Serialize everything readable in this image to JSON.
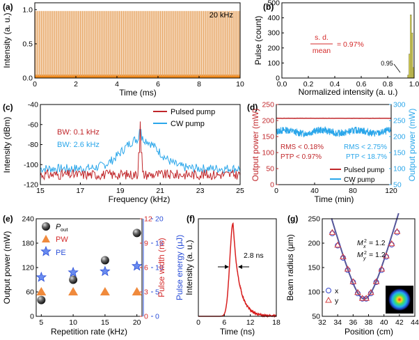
{
  "chart_data": [
    {
      "panel_label": "(a)",
      "type": "line",
      "annotation": "20 kHz",
      "xlabel": "Time (ms)",
      "ylabel": "Intensity (a. u.)",
      "xlim": [
        0,
        10
      ],
      "ylim": [
        0,
        1.1
      ],
      "xticks": [
        "0",
        "2",
        "4",
        "6",
        "8",
        "10"
      ],
      "yticks": [
        "0.0",
        "0.5",
        "1.0"
      ],
      "series": [
        {
          "description": "pulse train, period 0.05 ms",
          "pulse_period_ms": 0.05,
          "pulse_count": 200,
          "peak": 0.98,
          "baseline": 0.03,
          "color": "#e8a868"
        }
      ]
    },
    {
      "panel_label": "(b)",
      "type": "bar",
      "annotation_num": "s. d.",
      "annotation_den": "mean",
      "annotation_value": "= 0.97%",
      "annotation_marker": "0.95",
      "xlabel": "Normalized intensity (a. u.)",
      "ylabel": "Pulse (count)",
      "xlim": [
        0,
        1.0
      ],
      "ylim": [
        0,
        500
      ],
      "xticks": [
        "0.0",
        "0.2",
        "0.4",
        "0.6",
        "0.8",
        "1.0"
      ],
      "yticks": [
        "0",
        "100",
        "200",
        "300",
        "400",
        "500"
      ],
      "bar_color": "#d9d24a",
      "bars": [
        {
          "x": 0.955,
          "count": 20
        },
        {
          "x": 0.965,
          "count": 160
        },
        {
          "x": 0.975,
          "count": 420
        },
        {
          "x": 0.985,
          "count": 300
        },
        {
          "x": 0.995,
          "count": 70
        }
      ]
    },
    {
      "panel_label": "(c)",
      "type": "line",
      "xlabel": "Frequency (kHz)",
      "ylabel": "Intensity (dBm)",
      "xlim": [
        15,
        25
      ],
      "ylim": [
        -120,
        -40
      ],
      "xticks": [
        "15",
        "17",
        "19",
        "21",
        "23",
        "25"
      ],
      "yticks": [
        "-120",
        "-100",
        "-80",
        "-60",
        "-40"
      ],
      "annotations": [
        {
          "text": "BW:  0.1 kHz",
          "color": "#c0262a"
        },
        {
          "text": "BW:  2.6 kHz",
          "color": "#2aa6ea"
        }
      ],
      "series": [
        {
          "name": "Pulsed pump",
          "color": "#c0262a",
          "center": 20,
          "peak": -57,
          "floor": -110
        },
        {
          "name": "CW pump",
          "color": "#2aa6ea",
          "center": 20,
          "peak": -65,
          "floor": -103
        }
      ]
    },
    {
      "panel_label": "(d)",
      "type": "line",
      "xlabel": "Time (min)",
      "ylabel_left": "Output power (mW)",
      "ylabel_right": "Output power (mW)",
      "xlim": [
        0,
        120
      ],
      "ylim_left": [
        0,
        250
      ],
      "ylim_right": [
        50,
        300
      ],
      "xticks": [
        "0",
        "40",
        "80",
        "120"
      ],
      "yticks_left": [
        "0",
        "50",
        "100",
        "150",
        "200",
        "250"
      ],
      "yticks_right": [
        "50",
        "100",
        "150",
        "200",
        "250",
        "300"
      ],
      "annotations_left": [
        "RMS < 0.18%",
        "PTP < 0.97%"
      ],
      "annotations_right": [
        "RMS < 2.75%",
        "PTP < 18.7%"
      ],
      "series": [
        {
          "name": "Pulsed pump",
          "color": "#c0262a",
          "axis": "left",
          "mean": 207
        },
        {
          "name": "CW pump",
          "color": "#2aa6ea",
          "axis": "right",
          "mean": 215
        }
      ]
    },
    {
      "panel_label": "(e)",
      "type": "scatter",
      "xlabel": "Repetition rate (kHz)",
      "ylabel_left": "Output power (mW)",
      "ylabel_right1": "Pulse width (ns)",
      "ylabel_right2": "Pulse energy (μJ)",
      "xlim": [
        5,
        20
      ],
      "xticks": [
        "5",
        "10",
        "15",
        "20"
      ],
      "yticks_left": [
        "0",
        "60",
        "120",
        "180",
        "240"
      ],
      "yticks_right1": [
        "0",
        "3",
        "6",
        "9",
        "12"
      ],
      "yticks_right2": [
        "0",
        "5",
        "10",
        "15",
        "20"
      ],
      "legend": [
        {
          "label": "P",
          "sub": "out",
          "marker": "sphere",
          "color": "#333333"
        },
        {
          "label": "PW",
          "marker": "triangle",
          "color": "#f08a3c"
        },
        {
          "label": "PE",
          "marker": "star",
          "color": "#2b4fd8"
        }
      ],
      "x": [
        5,
        10,
        15,
        20
      ],
      "series": [
        {
          "name": "Pout",
          "values_mW": [
            40,
            90,
            138,
            205
          ]
        },
        {
          "name": "PW",
          "values_ns": [
            3.0,
            3.0,
            3.0,
            3.0
          ]
        },
        {
          "name": "PE",
          "values_uJ": [
            8.0,
            9.0,
            9.2,
            10.3
          ]
        }
      ]
    },
    {
      "panel_label": "(f)",
      "type": "line",
      "xlabel": "Time (ns)",
      "ylabel": "Intensity (a. u.)",
      "xlim": [
        0,
        18
      ],
      "ylim": [
        0,
        1
      ],
      "xticks": [
        "0",
        "6",
        "12",
        "18"
      ],
      "annotation": "2.8 ns",
      "series": [
        {
          "color": "#d81e1e",
          "peak_time": 8.0,
          "fwhm_ns": 2.8
        }
      ]
    },
    {
      "panel_label": "(g)",
      "type": "scatter",
      "xlabel": "Position (cm)",
      "ylabel": "Beam radius (μm)",
      "xlim": [
        32,
        44
      ],
      "ylim": [
        50,
        250
      ],
      "xticks": [
        "32",
        "34",
        "36",
        "38",
        "40",
        "42",
        "44"
      ],
      "yticks": [
        "50",
        "100",
        "150",
        "200",
        "250"
      ],
      "annotations": [
        "M",
        "M"
      ],
      "annotation_sub": [
        "x",
        "y"
      ],
      "annotation_value": "= 1.2",
      "legend": [
        {
          "label": "x",
          "marker": "circle",
          "color": "#3344cc"
        },
        {
          "label": "y",
          "marker": "triangle",
          "color": "#d64040"
        }
      ],
      "x": [
        33.3,
        34.0,
        34.7,
        35.3,
        36.0,
        36.6,
        37.2,
        37.7,
        38.3,
        39.0,
        39.7,
        40.3,
        41.0,
        41.7
      ],
      "series": [
        {
          "name": "x",
          "values": [
            220,
            195,
            170,
            145,
            120,
            97,
            86,
            86,
            97,
            120,
            145,
            172,
            197,
            222
          ]
        },
        {
          "name": "y",
          "values": [
            222,
            196,
            172,
            147,
            121,
            99,
            87,
            87,
            99,
            121,
            147,
            174,
            199,
            224
          ]
        }
      ]
    }
  ]
}
